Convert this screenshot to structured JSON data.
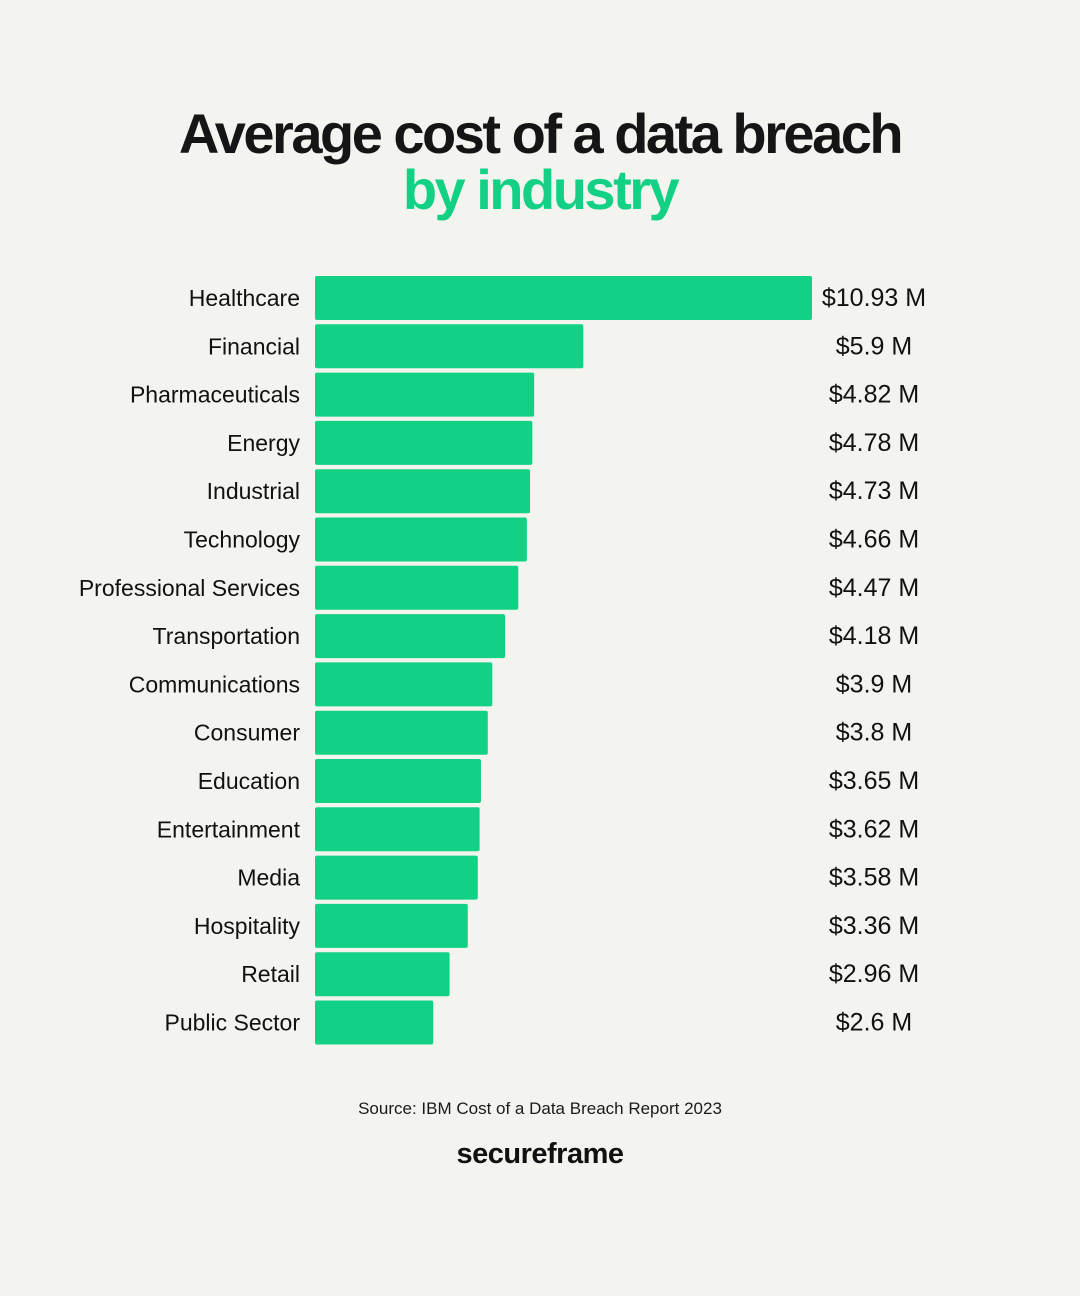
{
  "header": {
    "title": "Average cost of a data breach",
    "subtitle": "by industry"
  },
  "colors": {
    "background": "#f3f3ef",
    "bar": "#12d185",
    "accent_text": "#12d185",
    "text": "#111111"
  },
  "chart_data": {
    "type": "bar",
    "orientation": "horizontal",
    "unit": "$ M",
    "categories": [
      "Healthcare",
      "Financial",
      "Pharmaceuticals",
      "Energy",
      "Industrial",
      "Technology",
      "Professional Services",
      "Transportation",
      "Communications",
      "Consumer",
      "Education",
      "Entertainment",
      "Media",
      "Hospitality",
      "Retail",
      "Public Sector"
    ],
    "values": [
      10.93,
      5.9,
      4.82,
      4.78,
      4.73,
      4.66,
      4.47,
      4.18,
      3.9,
      3.8,
      3.65,
      3.62,
      3.58,
      3.36,
      2.96,
      2.6
    ],
    "value_labels": [
      "$10.93 M",
      "$5.9 M",
      "$4.82 M",
      "$4.78 M",
      "$4.73 M",
      "$4.66 M",
      "$4.47 M",
      "$4.18 M",
      "$3.9 M",
      "$3.8 M",
      "$3.65 M",
      "$3.62 M",
      "$3.58 M",
      "$3.36 M",
      "$2.96 M",
      "$2.6 M"
    ],
    "xlim": [
      0,
      10.93
    ],
    "grid": false,
    "legend": "none"
  },
  "footer": {
    "source": "Source: IBM Cost of a Data Breach Report 2023",
    "logo_text": "secureframe"
  }
}
